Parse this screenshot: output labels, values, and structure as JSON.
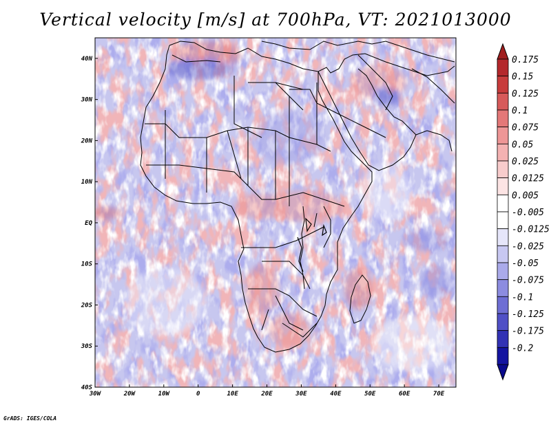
{
  "title": "Vertical velocity [m/s] at 700hPa, VT: 2021013000",
  "credit": "GrADS: IGES/COLA",
  "map": {
    "lon_range": [
      -30,
      75
    ],
    "lat_range": [
      -40,
      45
    ],
    "lon_ticks": [
      {
        "value": -30,
        "label": "30W"
      },
      {
        "value": -20,
        "label": "20W"
      },
      {
        "value": -10,
        "label": "10W"
      },
      {
        "value": 0,
        "label": "0"
      },
      {
        "value": 10,
        "label": "10E"
      },
      {
        "value": 20,
        "label": "20E"
      },
      {
        "value": 30,
        "label": "30E"
      },
      {
        "value": 40,
        "label": "40E"
      },
      {
        "value": 50,
        "label": "50E"
      },
      {
        "value": 60,
        "label": "60E"
      },
      {
        "value": 70,
        "label": "70E"
      }
    ],
    "lat_ticks": [
      {
        "value": 40,
        "label": "40N"
      },
      {
        "value": 30,
        "label": "30N"
      },
      {
        "value": 20,
        "label": "20N"
      },
      {
        "value": 10,
        "label": "10N"
      },
      {
        "value": 0,
        "label": "EQ"
      },
      {
        "value": -10,
        "label": "10S"
      },
      {
        "value": -20,
        "label": "20S"
      },
      {
        "value": -30,
        "label": "30S"
      },
      {
        "value": -40,
        "label": "40S"
      }
    ]
  },
  "colorbar": {
    "entries": [
      {
        "label": "0.175",
        "color": "#b4282c"
      },
      {
        "label": "0.15",
        "color": "#c83c3c"
      },
      {
        "label": "0.125",
        "color": "#d75a5a"
      },
      {
        "label": "0.1",
        "color": "#e47878"
      },
      {
        "label": "0.075",
        "color": "#ee9696"
      },
      {
        "label": "0.05",
        "color": "#f4b2b2"
      },
      {
        "label": "0.025",
        "color": "#f8cccc"
      },
      {
        "label": "0.0125",
        "color": "#fce4e4"
      },
      {
        "label": "0.005",
        "color": "#ffffff"
      },
      {
        "label": "-0.005",
        "color": "#ffffff"
      },
      {
        "label": "-0.0125",
        "color": "#e6e6fa"
      },
      {
        "label": "-0.025",
        "color": "#c8c8f2"
      },
      {
        "label": "-0.05",
        "color": "#aaaaea"
      },
      {
        "label": "-0.075",
        "color": "#8c8ce0"
      },
      {
        "label": "-0.1",
        "color": "#6e6ed4"
      },
      {
        "label": "-0.125",
        "color": "#5050c6"
      },
      {
        "label": "-0.175",
        "color": "#3232b4"
      },
      {
        "label": "-0.2",
        "color": "#1414a0"
      }
    ],
    "top_arrow_color": "#a01e1e",
    "bottom_arrow_color": "#0a0a8c"
  }
}
